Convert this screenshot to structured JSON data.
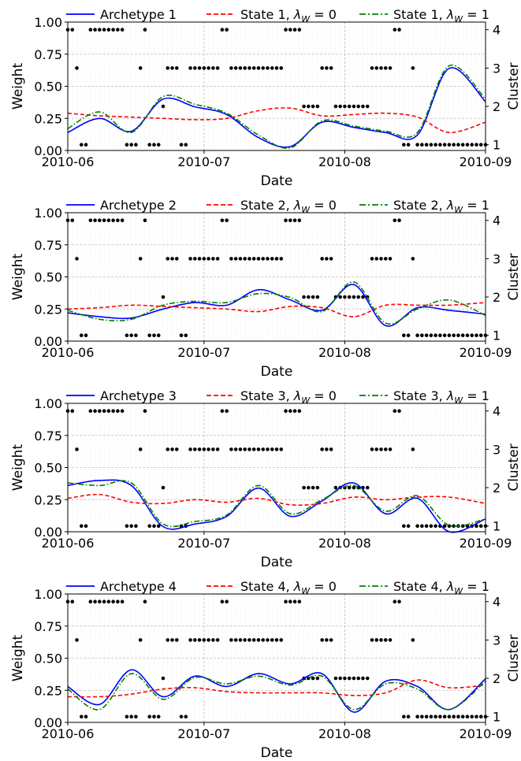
{
  "figure": {
    "xlabel": "Date",
    "ylabel_left": "Weight",
    "ylabel_right": "Cluster",
    "x_ticks": [
      "2010-06",
      "2010-07",
      "2010-08",
      "2010-09"
    ],
    "y_ticks": [
      "0.00",
      "0.25",
      "0.50",
      "0.75",
      "1.00"
    ],
    "cluster_ticks": [
      "1",
      "2",
      "3",
      "4"
    ],
    "colors": {
      "archetype": "#0000ff",
      "state_w0": "#ff0000",
      "state_w1": "#008000",
      "cluster_dot": "#000000",
      "grid": "#d9d9d9"
    }
  },
  "chart_data": [
    {
      "type": "line",
      "title": "",
      "xlabel": "Date",
      "ylabel": "Weight",
      "y2label": "Cluster",
      "xlim": [
        "2010-06-01",
        "2010-09-01"
      ],
      "ylim": [
        0,
        1
      ],
      "y2lim": [
        0.85,
        4.2
      ],
      "grid": true,
      "legend": [
        {
          "text": "Archetype 1",
          "style": "solid",
          "color": "#0000ff"
        },
        {
          "text": "State 1, λW = 0",
          "sym": "State 1, ",
          "lam": "λ",
          "sub": "W",
          "rest": " = 0",
          "style": "dashed",
          "color": "#ff0000"
        },
        {
          "text": "State 1, λW = 1",
          "sym": "State 1, ",
          "lam": "λ",
          "sub": "W",
          "rest": " = 1",
          "style": "dashdot",
          "color": "#008000"
        }
      ],
      "x": [
        "2010-06-01",
        "2010-06-08",
        "2010-06-15",
        "2010-06-22",
        "2010-06-29",
        "2010-07-06",
        "2010-07-13",
        "2010-07-20",
        "2010-07-27",
        "2010-08-03",
        "2010-08-10",
        "2010-08-17",
        "2010-08-24",
        "2010-09-01"
      ],
      "series": [
        {
          "name": "Archetype 1",
          "values": [
            0.14,
            0.25,
            0.15,
            0.4,
            0.34,
            0.28,
            0.1,
            0.03,
            0.22,
            0.18,
            0.14,
            0.12,
            0.64,
            0.38
          ]
        },
        {
          "name": "State 1, λW = 0",
          "values": [
            0.29,
            0.27,
            0.26,
            0.25,
            0.24,
            0.25,
            0.31,
            0.33,
            0.27,
            0.28,
            0.29,
            0.26,
            0.14,
            0.22
          ]
        },
        {
          "name": "State 1, λW = 1",
          "values": [
            0.17,
            0.3,
            0.14,
            0.42,
            0.36,
            0.29,
            0.12,
            0.02,
            0.23,
            0.19,
            0.15,
            0.14,
            0.66,
            0.4
          ]
        }
      ],
      "clusters": [
        4,
        4,
        3,
        1,
        1,
        4,
        4,
        4,
        4,
        4,
        4,
        4,
        4,
        1,
        1,
        1,
        3,
        4,
        1,
        1,
        1,
        2,
        3,
        3,
        3,
        1,
        1,
        3,
        3,
        3,
        3,
        3,
        3,
        3,
        4,
        4,
        3,
        3,
        3,
        3,
        3,
        3,
        3,
        3,
        3,
        3,
        3,
        3,
        4,
        4,
        4,
        4,
        2,
        2,
        2,
        2,
        3,
        3,
        3,
        2,
        2,
        2,
        2,
        2,
        2,
        2,
        2,
        3,
        3,
        3,
        3,
        3,
        4,
        4,
        1,
        1,
        3,
        1,
        1,
        1,
        1,
        1,
        1,
        1,
        1,
        1,
        1,
        1,
        1,
        1,
        1,
        1,
        1
      ]
    },
    {
      "type": "line",
      "title": "",
      "xlabel": "Date",
      "ylabel": "Weight",
      "y2label": "Cluster",
      "xlim": [
        "2010-06-01",
        "2010-09-01"
      ],
      "ylim": [
        0,
        1
      ],
      "y2lim": [
        0.85,
        4.2
      ],
      "grid": true,
      "legend": [
        {
          "text": "Archetype 2",
          "style": "solid",
          "color": "#0000ff"
        },
        {
          "text": "State 2, λW = 0",
          "sym": "State 2, ",
          "lam": "λ",
          "sub": "W",
          "rest": " = 0",
          "style": "dashed",
          "color": "#ff0000"
        },
        {
          "text": "State 2, λW = 1",
          "sym": "State 2, ",
          "lam": "λ",
          "sub": "W",
          "rest": " = 1",
          "style": "dashdot",
          "color": "#008000"
        }
      ],
      "x": [
        "2010-06-01",
        "2010-06-08",
        "2010-06-15",
        "2010-06-22",
        "2010-06-29",
        "2010-07-06",
        "2010-07-13",
        "2010-07-20",
        "2010-07-27",
        "2010-08-03",
        "2010-08-10",
        "2010-08-17",
        "2010-08-24",
        "2010-09-01"
      ],
      "series": [
        {
          "name": "Archetype 2",
          "values": [
            0.22,
            0.19,
            0.18,
            0.25,
            0.3,
            0.28,
            0.4,
            0.32,
            0.24,
            0.44,
            0.12,
            0.26,
            0.24,
            0.21
          ]
        },
        {
          "name": "State 2, λW = 0",
          "values": [
            0.25,
            0.26,
            0.28,
            0.27,
            0.26,
            0.25,
            0.23,
            0.27,
            0.26,
            0.19,
            0.28,
            0.28,
            0.28,
            0.3
          ]
        },
        {
          "name": "State 2, λW = 1",
          "values": [
            0.24,
            0.17,
            0.17,
            0.28,
            0.31,
            0.3,
            0.37,
            0.34,
            0.23,
            0.46,
            0.14,
            0.25,
            0.32,
            0.2
          ]
        }
      ],
      "clusters": [
        4,
        4,
        3,
        1,
        1,
        4,
        4,
        4,
        4,
        4,
        4,
        4,
        4,
        1,
        1,
        1,
        3,
        4,
        1,
        1,
        1,
        2,
        3,
        3,
        3,
        1,
        1,
        3,
        3,
        3,
        3,
        3,
        3,
        3,
        4,
        4,
        3,
        3,
        3,
        3,
        3,
        3,
        3,
        3,
        3,
        3,
        3,
        3,
        4,
        4,
        4,
        4,
        2,
        2,
        2,
        2,
        3,
        3,
        3,
        2,
        2,
        2,
        2,
        2,
        2,
        2,
        2,
        3,
        3,
        3,
        3,
        3,
        4,
        4,
        1,
        1,
        3,
        1,
        1,
        1,
        1,
        1,
        1,
        1,
        1,
        1,
        1,
        1,
        1,
        1,
        1,
        1,
        1
      ]
    },
    {
      "type": "line",
      "title": "",
      "xlabel": "Date",
      "ylabel": "Weight",
      "y2label": "Cluster",
      "xlim": [
        "2010-06-01",
        "2010-09-01"
      ],
      "ylim": [
        0,
        1
      ],
      "y2lim": [
        0.85,
        4.2
      ],
      "grid": true,
      "legend": [
        {
          "text": "Archetype 3",
          "style": "solid",
          "color": "#0000ff"
        },
        {
          "text": "State 3, λW = 0",
          "sym": "State 3, ",
          "lam": "λ",
          "sub": "W",
          "rest": " = 0",
          "style": "dashed",
          "color": "#ff0000"
        },
        {
          "text": "State 3, λW = 1",
          "sym": "State 3, ",
          "lam": "λ",
          "sub": "W",
          "rest": " = 1",
          "style": "dashdot",
          "color": "#008000"
        }
      ],
      "x": [
        "2010-06-01",
        "2010-06-08",
        "2010-06-15",
        "2010-06-22",
        "2010-06-29",
        "2010-07-06",
        "2010-07-13",
        "2010-07-20",
        "2010-07-27",
        "2010-08-03",
        "2010-08-10",
        "2010-08-17",
        "2010-08-24",
        "2010-09-01"
      ],
      "series": [
        {
          "name": "Archetype 3",
          "values": [
            0.36,
            0.4,
            0.36,
            0.04,
            0.06,
            0.12,
            0.34,
            0.12,
            0.24,
            0.38,
            0.14,
            0.26,
            0.0,
            0.1
          ]
        },
        {
          "name": "State 3, λW = 0",
          "values": [
            0.26,
            0.29,
            0.23,
            0.22,
            0.25,
            0.23,
            0.26,
            0.21,
            0.22,
            0.27,
            0.25,
            0.27,
            0.27,
            0.22
          ]
        },
        {
          "name": "State 3, λW = 1",
          "values": [
            0.38,
            0.36,
            0.38,
            0.06,
            0.08,
            0.13,
            0.36,
            0.14,
            0.25,
            0.36,
            0.16,
            0.28,
            0.05,
            0.1
          ]
        }
      ],
      "clusters": [
        4,
        4,
        3,
        1,
        1,
        4,
        4,
        4,
        4,
        4,
        4,
        4,
        4,
        1,
        1,
        1,
        3,
        4,
        1,
        1,
        1,
        2,
        3,
        3,
        3,
        1,
        1,
        3,
        3,
        3,
        3,
        3,
        3,
        3,
        4,
        4,
        3,
        3,
        3,
        3,
        3,
        3,
        3,
        3,
        3,
        3,
        3,
        3,
        4,
        4,
        4,
        4,
        2,
        2,
        2,
        2,
        3,
        3,
        3,
        2,
        2,
        2,
        2,
        2,
        2,
        2,
        2,
        3,
        3,
        3,
        3,
        3,
        4,
        4,
        1,
        1,
        3,
        1,
        1,
        1,
        1,
        1,
        1,
        1,
        1,
        1,
        1,
        1,
        1,
        1,
        1,
        1,
        1
      ]
    },
    {
      "type": "line",
      "title": "",
      "xlabel": "Date",
      "ylabel": "Weight",
      "y2label": "Cluster",
      "xlim": [
        "2010-06-01",
        "2010-09-01"
      ],
      "ylim": [
        0,
        1
      ],
      "y2lim": [
        0.85,
        4.2
      ],
      "grid": true,
      "legend": [
        {
          "text": "Archetype 4",
          "style": "solid",
          "color": "#0000ff"
        },
        {
          "text": "State 4, λW = 0",
          "sym": "State 4, ",
          "lam": "λ",
          "sub": "W",
          "rest": " = 0",
          "style": "dashed",
          "color": "#ff0000"
        },
        {
          "text": "State 4, λW = 1",
          "sym": "State 4, ",
          "lam": "λ",
          "sub": "W",
          "rest": " = 1",
          "style": "dashdot",
          "color": "#008000"
        }
      ],
      "x": [
        "2010-06-01",
        "2010-06-08",
        "2010-06-15",
        "2010-06-22",
        "2010-06-29",
        "2010-07-06",
        "2010-07-13",
        "2010-07-20",
        "2010-07-27",
        "2010-08-03",
        "2010-08-10",
        "2010-08-17",
        "2010-08-24",
        "2010-09-01"
      ],
      "series": [
        {
          "name": "Archetype 4",
          "values": [
            0.28,
            0.14,
            0.41,
            0.2,
            0.36,
            0.28,
            0.38,
            0.3,
            0.38,
            0.08,
            0.32,
            0.28,
            0.1,
            0.34
          ]
        },
        {
          "name": "State 4, λW = 0",
          "values": [
            0.2,
            0.2,
            0.22,
            0.26,
            0.27,
            0.24,
            0.23,
            0.23,
            0.23,
            0.21,
            0.23,
            0.33,
            0.27,
            0.29
          ]
        },
        {
          "name": "State 4, λW = 1",
          "values": [
            0.26,
            0.1,
            0.38,
            0.18,
            0.35,
            0.3,
            0.36,
            0.29,
            0.36,
            0.1,
            0.3,
            0.26,
            0.1,
            0.32
          ]
        }
      ],
      "clusters": [
        4,
        4,
        3,
        1,
        1,
        4,
        4,
        4,
        4,
        4,
        4,
        4,
        4,
        1,
        1,
        1,
        3,
        4,
        1,
        1,
        1,
        2,
        3,
        3,
        3,
        1,
        1,
        3,
        3,
        3,
        3,
        3,
        3,
        3,
        4,
        4,
        3,
        3,
        3,
        3,
        3,
        3,
        3,
        3,
        3,
        3,
        3,
        3,
        4,
        4,
        4,
        4,
        2,
        2,
        2,
        2,
        3,
        3,
        3,
        2,
        2,
        2,
        2,
        2,
        2,
        2,
        2,
        3,
        3,
        3,
        3,
        3,
        4,
        4,
        1,
        1,
        3,
        1,
        1,
        1,
        1,
        1,
        1,
        1,
        1,
        1,
        1,
        1,
        1,
        1,
        1,
        1,
        1
      ]
    }
  ]
}
